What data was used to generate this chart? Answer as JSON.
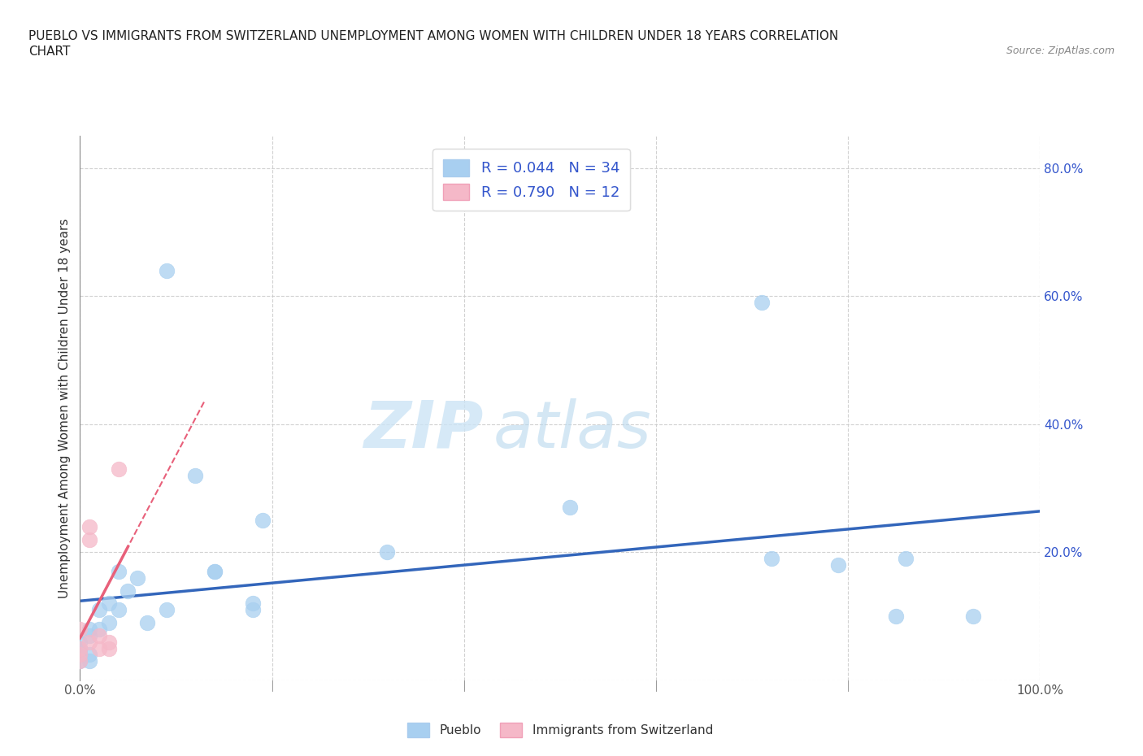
{
  "title_line1": "PUEBLO VS IMMIGRANTS FROM SWITZERLAND UNEMPLOYMENT AMONG WOMEN WITH CHILDREN UNDER 18 YEARS CORRELATION",
  "title_line2": "CHART",
  "source": "Source: ZipAtlas.com",
  "ylabel": "Unemployment Among Women with Children Under 18 years",
  "xlim": [
    0.0,
    1.0
  ],
  "ylim": [
    0.0,
    0.85
  ],
  "xticks": [
    0.0,
    0.2,
    0.4,
    0.6,
    0.8,
    1.0
  ],
  "yticks": [
    0.0,
    0.2,
    0.4,
    0.6,
    0.8
  ],
  "xtick_labels": [
    "0.0%",
    "",
    "",
    "",
    "",
    "100.0%"
  ],
  "ytick_labels": [
    "",
    "20.0%",
    "40.0%",
    "60.0%",
    "80.0%"
  ],
  "pueblo_color": "#a8cff0",
  "switzerland_color": "#f5b8c8",
  "pueblo_R": 0.044,
  "pueblo_N": 34,
  "switzerland_R": 0.79,
  "switzerland_N": 12,
  "pueblo_line_color": "#3366bb",
  "switzerland_line_color": "#e8607a",
  "legend_color": "#3355cc",
  "watermark_zip": "ZIP",
  "watermark_atlas": "atlas",
  "pueblo_x": [
    0.0,
    0.0,
    0.0,
    0.0,
    0.0,
    0.01,
    0.01,
    0.01,
    0.01,
    0.02,
    0.02,
    0.03,
    0.03,
    0.04,
    0.04,
    0.05,
    0.06,
    0.07,
    0.09,
    0.09,
    0.12,
    0.14,
    0.14,
    0.18,
    0.18,
    0.19,
    0.32,
    0.51,
    0.71,
    0.72,
    0.79,
    0.85,
    0.86,
    0.93
  ],
  "pueblo_y": [
    0.03,
    0.04,
    0.05,
    0.05,
    0.06,
    0.03,
    0.04,
    0.07,
    0.08,
    0.08,
    0.11,
    0.09,
    0.12,
    0.11,
    0.17,
    0.14,
    0.16,
    0.09,
    0.11,
    0.64,
    0.32,
    0.17,
    0.17,
    0.11,
    0.12,
    0.25,
    0.2,
    0.27,
    0.59,
    0.19,
    0.18,
    0.1,
    0.19,
    0.1
  ],
  "switzerland_x": [
    0.0,
    0.0,
    0.0,
    0.0,
    0.01,
    0.01,
    0.01,
    0.02,
    0.02,
    0.03,
    0.03,
    0.04
  ],
  "switzerland_y": [
    0.03,
    0.04,
    0.05,
    0.08,
    0.06,
    0.22,
    0.24,
    0.05,
    0.07,
    0.05,
    0.06,
    0.33
  ]
}
